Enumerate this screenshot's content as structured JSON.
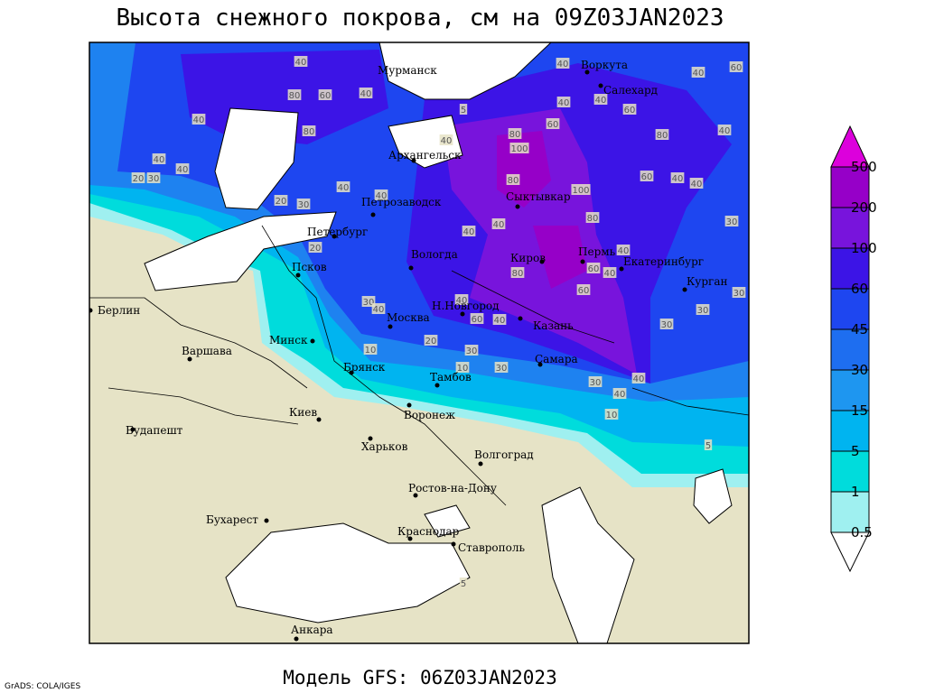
{
  "title": "Высота снежного покрова, см на 09Z03JAN2023",
  "footer": "Модель GFS: 06Z03JAN2023",
  "credit": "GrADS: COLA/IGES",
  "legend": {
    "levels": [
      0.5,
      1,
      5,
      15,
      30,
      45,
      60,
      100,
      200,
      500
    ],
    "colors": [
      "#ffffff",
      "#9ff0f0",
      "#00dcdc",
      "#00b4f0",
      "#1e96f0",
      "#1e6ef0",
      "#1e46f0",
      "#3c14e6",
      "#7814dc",
      "#9600c8",
      "#dc00dc"
    ]
  },
  "cities": [
    "Мурманск",
    "Воркута",
    "Салехард",
    "Архангельск",
    "Сыктывкар",
    "Петрозаводск",
    "Петербург",
    "Вологда",
    "Киров",
    "Пермь",
    "Екатеринбург",
    "Курган",
    "Псков",
    "Н.Новгород",
    "Москва",
    "Казань",
    "Берлин",
    "Варшава",
    "Минск",
    "Брянск",
    "Тамбов",
    "Самара",
    "Киев",
    "Воронеж",
    "Харьков",
    "Волгоград",
    "Будапешт",
    "Ростов-на-Дону",
    "Бухарест",
    "Краснодар",
    "Ставрополь",
    "Анкара"
  ],
  "contour_labels": [
    "40",
    "40",
    "60",
    "40",
    "80",
    "60",
    "40",
    "5",
    "40",
    "40",
    "60",
    "40",
    "80",
    "40",
    "80",
    "60",
    "100",
    "80",
    "40",
    "40",
    "40",
    "20",
    "30",
    "80",
    "60",
    "40",
    "40",
    "40",
    "20",
    "30",
    "40",
    "100",
    "80",
    "30",
    "40",
    "40",
    "20",
    "40",
    "80",
    "60",
    "40",
    "60",
    "30",
    "30",
    "40",
    "40",
    "60",
    "40",
    "30",
    "30",
    "10",
    "20",
    "30",
    "30",
    "10",
    "40",
    "30",
    "40",
    "10",
    "5",
    "5"
  ]
}
